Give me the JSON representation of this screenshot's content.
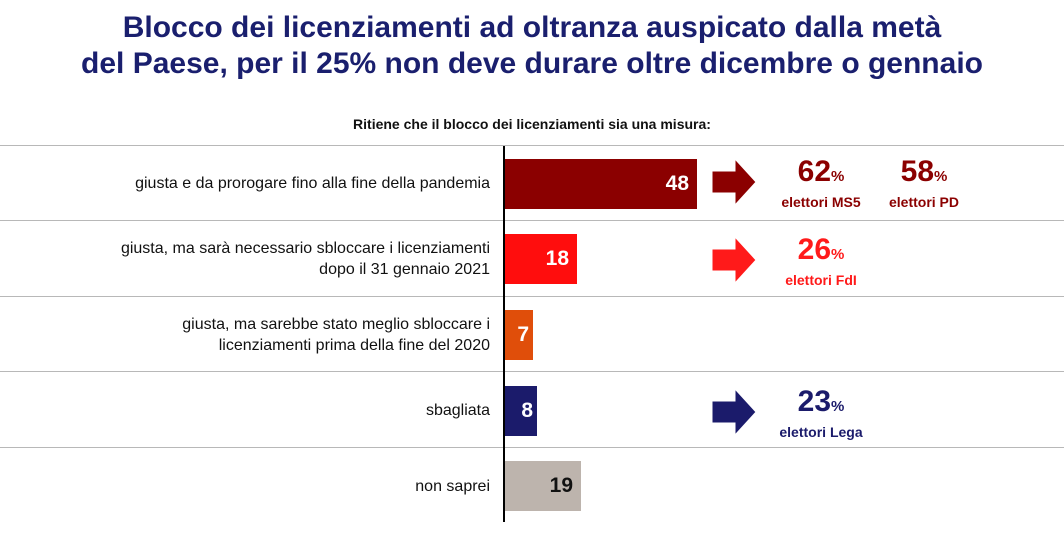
{
  "title_line1": "Blocco dei licenziamenti ad oltranza auspicato dalla metà",
  "title_line2": "del Paese, per il 25% non deve durare oltre dicembre o gennaio",
  "colors": {
    "title": "#1a1f6e",
    "dark_red": "#8b0000",
    "red": "#ff0d0d",
    "orange": "#e04e0a",
    "navy": "#1b1b6b",
    "gray": "#bdb4ad"
  },
  "callouts": {
    "ms5": {
      "pct": "62",
      "unit": "%",
      "label": "elettori MS5",
      "color": "#8b0000"
    },
    "pd": {
      "pct": "58",
      "unit": "%",
      "label": "elettori PD",
      "color": "#8b0000"
    },
    "fdi": {
      "pct": "26",
      "unit": "%",
      "label": "elettori FdI",
      "color": "#ff1a1a"
    },
    "lega": {
      "pct": "23",
      "unit": "%",
      "label": "elettori Lega",
      "color": "#1b1b6b"
    }
  },
  "icons": [
    "arrow-right-icon"
  ],
  "chart_data": {
    "type": "bar",
    "orientation": "horizontal",
    "title": "Ritiene che il blocco dei licenziamenti sia una misura:",
    "categories": [
      [
        "giusta e da prorogare fino alla fine della pandemia"
      ],
      [
        "giusta, ma sarà necessario sbloccare i licenziamenti",
        "dopo il 31 gennaio 2021"
      ],
      [
        "giusta, ma sarebbe stato meglio sbloccare i",
        "licenziamenti prima della fine del 2020"
      ],
      [
        "sbagliata"
      ],
      [
        "non saprei"
      ]
    ],
    "values": [
      48,
      18,
      7,
      8,
      19
    ],
    "bar_colors": [
      "#8b0000",
      "#ff0d0d",
      "#e04e0a",
      "#1b1b6b",
      "#bdb4ad"
    ],
    "label_colors": [
      "#ffffff",
      "#ffffff",
      "#ffffff",
      "#ffffff",
      "#111111"
    ],
    "xlim": [
      0,
      100
    ],
    "grid": false,
    "legend": "none"
  }
}
